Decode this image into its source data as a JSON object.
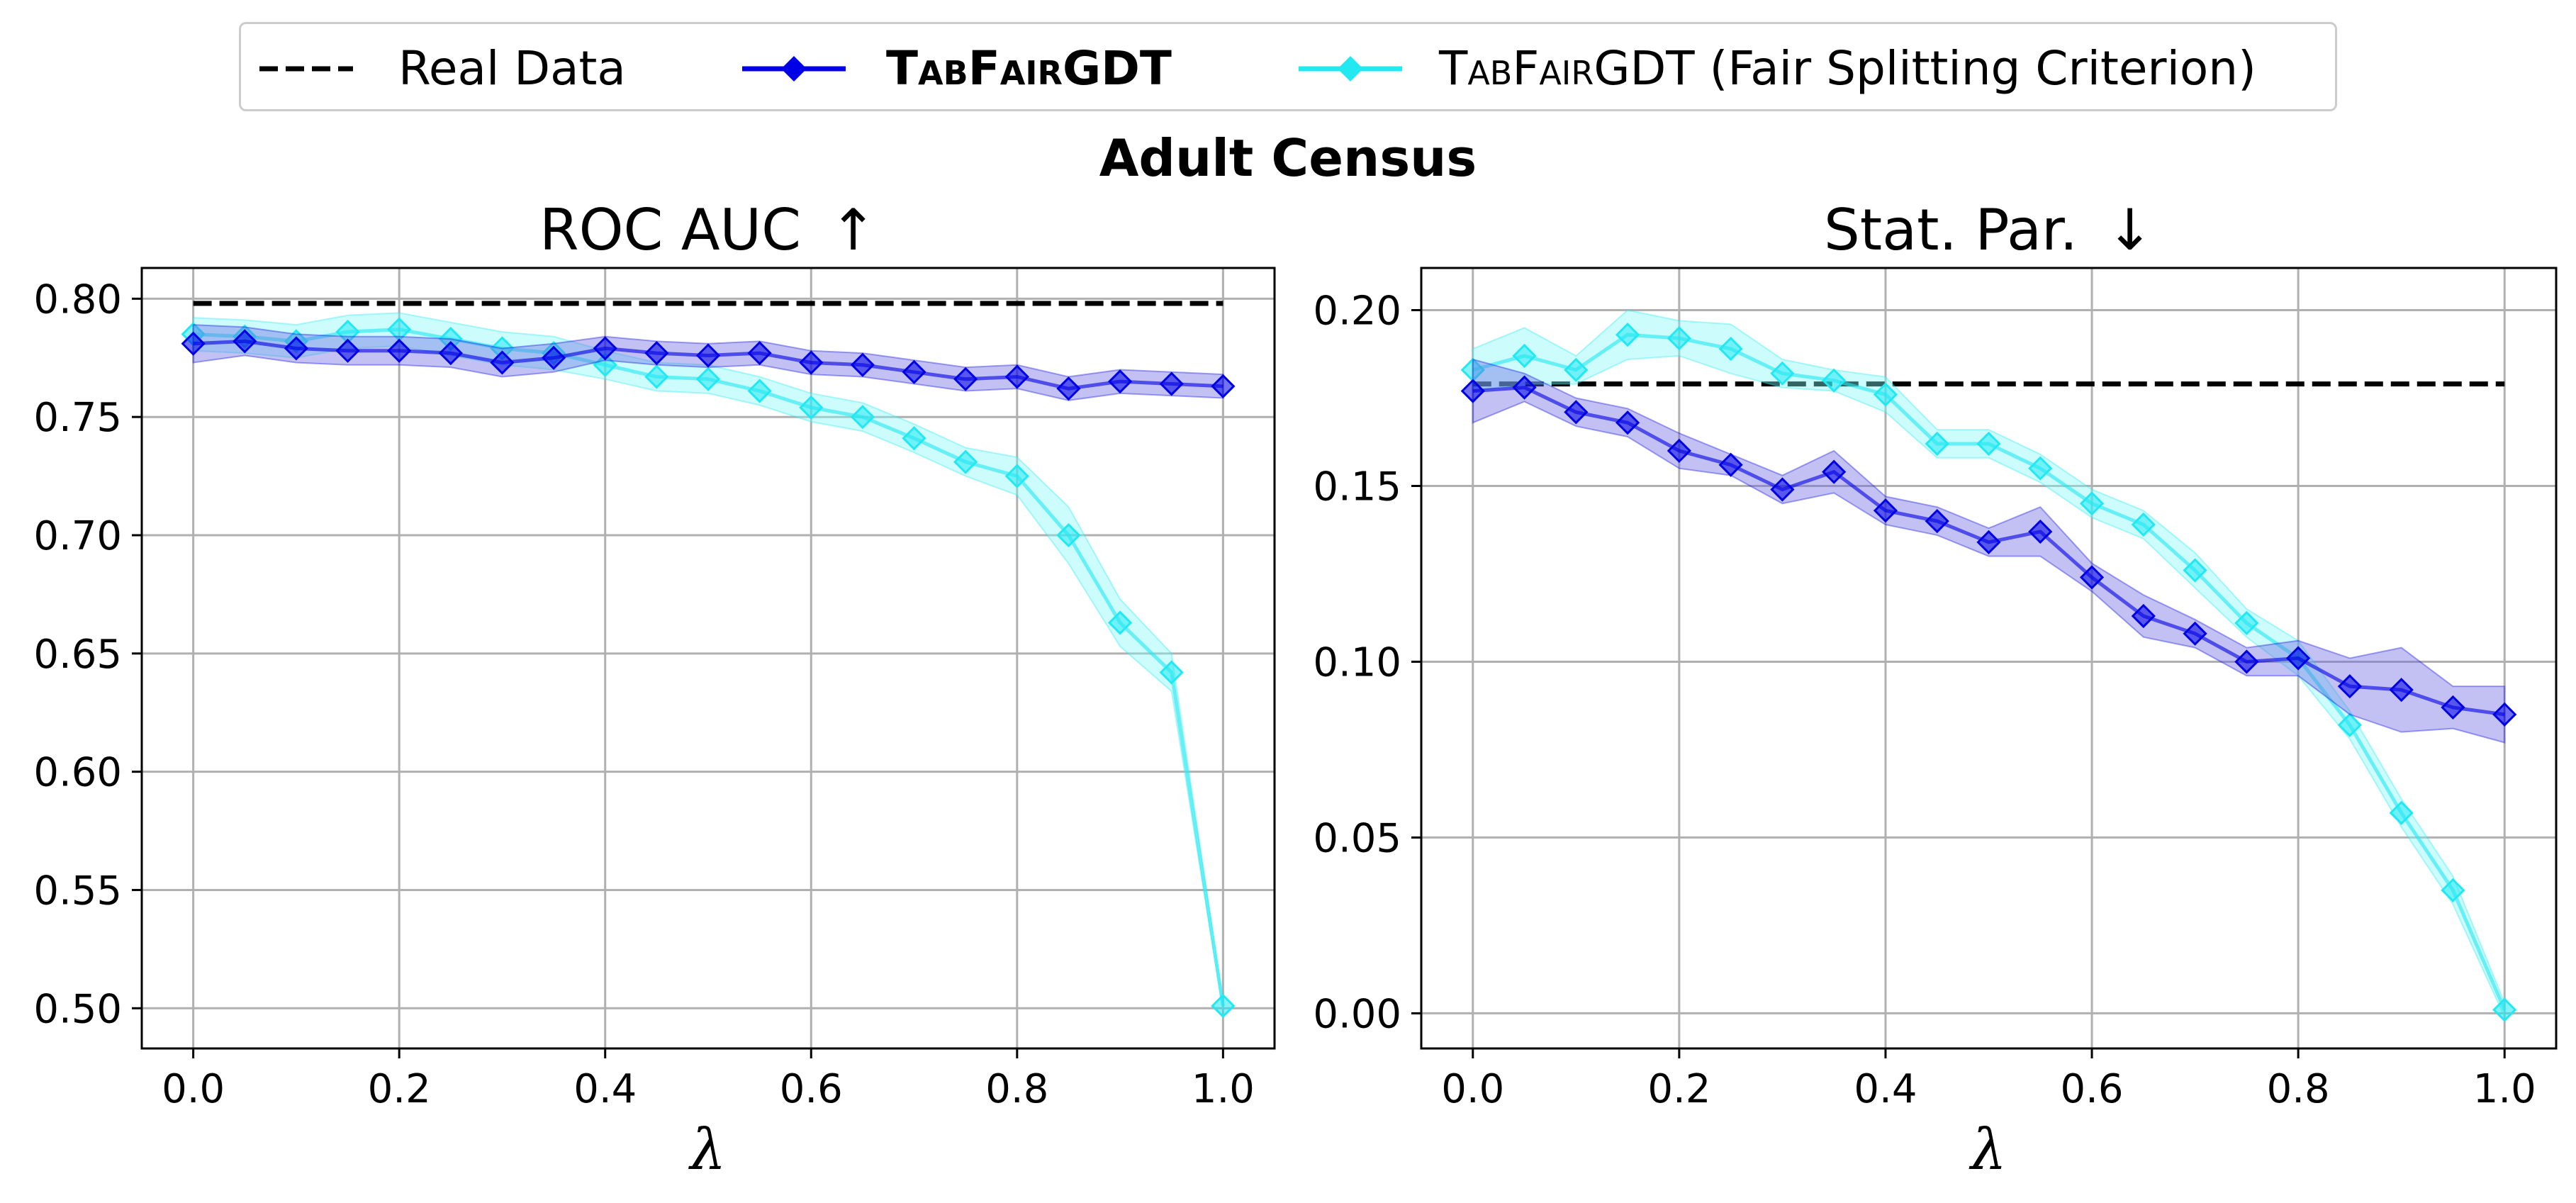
{
  "figure": {
    "suptitle": "Adult Census"
  },
  "legend": {
    "items": [
      {
        "id": "real",
        "parts": [
          "Real Data"
        ],
        "bold": false
      },
      {
        "id": "tfg",
        "parts": [
          "T",
          "AB",
          "F",
          "AIR",
          "GDT"
        ],
        "bold": true
      },
      {
        "id": "tfg_fair",
        "parts": [
          "T",
          "AB",
          "F",
          "AIR",
          "GDT (Fair Splitting Criterion)"
        ],
        "bold": false
      }
    ]
  },
  "colors": {
    "real": "#000000",
    "tfg": "#0000e6",
    "tfg_fill": "#6a63e0",
    "tfg_fair": "#22e8f2",
    "tfg_fair_fill": "#7ff7f7",
    "grid": "#b0b0b0"
  },
  "chart_data": [
    {
      "type": "line",
      "title": "ROC AUC",
      "title_arrow": "↑",
      "xlabel": "λ",
      "ylabel": "",
      "xlim": [
        -0.05,
        1.05
      ],
      "ylim": [
        0.483,
        0.813
      ],
      "xticks": [
        "0.0",
        "0.2",
        "0.4",
        "0.6",
        "0.8",
        "1.0"
      ],
      "yticks": [
        "0.50",
        "0.55",
        "0.60",
        "0.65",
        "0.70",
        "0.75",
        "0.80"
      ],
      "grid": true,
      "x": [
        0.0,
        0.05,
        0.1,
        0.15,
        0.2,
        0.25,
        0.3,
        0.35,
        0.4,
        0.45,
        0.5,
        0.55,
        0.6,
        0.65,
        0.7,
        0.75,
        0.8,
        0.85,
        0.9,
        0.95,
        1.0
      ],
      "series": [
        {
          "key": "real",
          "style": "dashed",
          "values": [
            0.798,
            0.798,
            0.798,
            0.798,
            0.798,
            0.798,
            0.798,
            0.798,
            0.798,
            0.798,
            0.798,
            0.798,
            0.798,
            0.798,
            0.798,
            0.798,
            0.798,
            0.798,
            0.798,
            0.798,
            0.798
          ]
        },
        {
          "key": "tfg_fair",
          "style": "marker-diamond",
          "values": [
            0.785,
            0.784,
            0.782,
            0.786,
            0.787,
            0.783,
            0.779,
            0.777,
            0.772,
            0.767,
            0.766,
            0.761,
            0.754,
            0.75,
            0.741,
            0.731,
            0.725,
            0.7,
            0.663,
            0.642,
            0.501
          ],
          "band": [
            0.007,
            0.007,
            0.007,
            0.007,
            0.007,
            0.007,
            0.007,
            0.007,
            0.006,
            0.006,
            0.006,
            0.006,
            0.006,
            0.006,
            0.006,
            0.006,
            0.008,
            0.012,
            0.01,
            0.008,
            0.002
          ]
        },
        {
          "key": "tfg",
          "style": "marker-diamond",
          "values": [
            0.781,
            0.782,
            0.779,
            0.778,
            0.778,
            0.777,
            0.773,
            0.775,
            0.779,
            0.777,
            0.776,
            0.777,
            0.773,
            0.772,
            0.769,
            0.766,
            0.767,
            0.762,
            0.765,
            0.764,
            0.763
          ],
          "band": [
            0.008,
            0.006,
            0.006,
            0.006,
            0.006,
            0.006,
            0.006,
            0.006,
            0.005,
            0.005,
            0.005,
            0.005,
            0.005,
            0.005,
            0.005,
            0.005,
            0.005,
            0.005,
            0.005,
            0.005,
            0.005
          ]
        }
      ]
    },
    {
      "type": "line",
      "title": "Stat. Par.",
      "title_arrow": "↓",
      "xlabel": "λ",
      "ylabel": "",
      "xlim": [
        -0.05,
        1.05
      ],
      "ylim": [
        -0.01,
        0.212
      ],
      "xticks": [
        "0.0",
        "0.2",
        "0.4",
        "0.6",
        "0.8",
        "1.0"
      ],
      "yticks": [
        "0.00",
        "0.05",
        "0.10",
        "0.15",
        "0.20"
      ],
      "grid": true,
      "x": [
        0.0,
        0.05,
        0.1,
        0.15,
        0.2,
        0.25,
        0.3,
        0.35,
        0.4,
        0.45,
        0.5,
        0.55,
        0.6,
        0.65,
        0.7,
        0.75,
        0.8,
        0.85,
        0.9,
        0.95,
        1.0
      ],
      "series": [
        {
          "key": "real",
          "style": "dashed",
          "values": [
            0.179,
            0.179,
            0.179,
            0.179,
            0.179,
            0.179,
            0.179,
            0.179,
            0.179,
            0.179,
            0.179,
            0.179,
            0.179,
            0.179,
            0.179,
            0.179,
            0.179,
            0.179,
            0.179,
            0.179,
            0.179
          ]
        },
        {
          "key": "tfg_fair",
          "style": "marker-diamond",
          "values": [
            0.183,
            0.187,
            0.183,
            0.193,
            0.192,
            0.189,
            0.182,
            0.18,
            0.176,
            0.162,
            0.162,
            0.155,
            0.145,
            0.139,
            0.126,
            0.111,
            0.101,
            0.082,
            0.057,
            0.035,
            0.001
          ],
          "band": [
            0.006,
            0.008,
            0.004,
            0.007,
            0.005,
            0.007,
            0.004,
            0.003,
            0.005,
            0.004,
            0.004,
            0.004,
            0.004,
            0.004,
            0.005,
            0.004,
            0.005,
            0.004,
            0.004,
            0.004,
            0.002
          ]
        },
        {
          "key": "tfg",
          "style": "marker-diamond",
          "values": [
            0.177,
            0.178,
            0.171,
            0.168,
            0.16,
            0.156,
            0.149,
            0.154,
            0.143,
            0.14,
            0.134,
            0.137,
            0.124,
            0.113,
            0.108,
            0.1,
            0.101,
            0.093,
            0.092,
            0.087,
            0.085
          ],
          "band": [
            0.009,
            0.004,
            0.004,
            0.004,
            0.005,
            0.003,
            0.004,
            0.006,
            0.004,
            0.004,
            0.004,
            0.007,
            0.004,
            0.006,
            0.004,
            0.004,
            0.005,
            0.008,
            0.012,
            0.006,
            0.008
          ]
        }
      ]
    }
  ]
}
